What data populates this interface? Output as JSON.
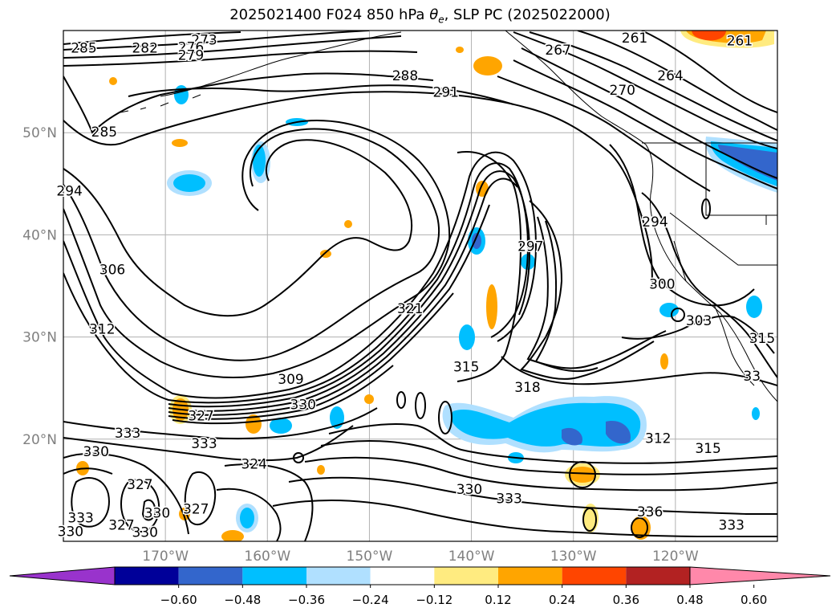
{
  "title": {
    "prefix": "2025021400 F024 850 hPa ",
    "theta": "θ",
    "sub": "e",
    "suffix": ", SLP PC (2025022000)"
  },
  "map": {
    "lon_range": [
      -180,
      -110
    ],
    "lat_range": [
      10,
      60
    ],
    "lon_ticks": [
      {
        "value": -170,
        "label": "170°W"
      },
      {
        "value": -160,
        "label": "160°W"
      },
      {
        "value": -150,
        "label": "150°W"
      },
      {
        "value": -140,
        "label": "140°W"
      },
      {
        "value": -130,
        "label": "130°W"
      },
      {
        "value": -120,
        "label": "120°W"
      }
    ],
    "lat_ticks": [
      {
        "value": 20,
        "label": "20°N"
      },
      {
        "value": 30,
        "label": "30°N"
      },
      {
        "value": 40,
        "label": "40°N"
      },
      {
        "value": 50,
        "label": "50°N"
      }
    ],
    "gridlines": true,
    "contour_labels": [
      {
        "text": "273",
        "lon": -166.2,
        "lat": 59.1
      },
      {
        "text": "285",
        "lon": -178,
        "lat": 58.3
      },
      {
        "text": "282",
        "lon": -172,
        "lat": 58.3
      },
      {
        "text": "276",
        "lon": -167.5,
        "lat": 58.4
      },
      {
        "text": "279",
        "lon": -167.5,
        "lat": 57.6
      },
      {
        "text": "261",
        "lon": -124,
        "lat": 59.3
      },
      {
        "text": "267",
        "lon": -131.5,
        "lat": 58.1
      },
      {
        "text": "264",
        "lon": -120.5,
        "lat": 55.6
      },
      {
        "text": "270",
        "lon": -125.2,
        "lat": 54.2
      },
      {
        "text": "288",
        "lon": -146.5,
        "lat": 55.6
      },
      {
        "text": "291",
        "lon": -142.5,
        "lat": 54.0
      },
      {
        "text": "285",
        "lon": -176,
        "lat": 50.1
      },
      {
        "text": "294",
        "lon": -179.4,
        "lat": 44.3
      },
      {
        "text": "294",
        "lon": -122,
        "lat": 41.3
      },
      {
        "text": "297",
        "lon": -134.2,
        "lat": 38.9
      },
      {
        "text": "306",
        "lon": -175.2,
        "lat": 36.6
      },
      {
        "text": "300",
        "lon": -121.3,
        "lat": 35.2
      },
      {
        "text": "303",
        "lon": -117.7,
        "lat": 31.6
      },
      {
        "text": "312",
        "lon": -176.2,
        "lat": 30.8
      },
      {
        "text": "315",
        "lon": -111.5,
        "lat": 29.9
      },
      {
        "text": "321",
        "lon": -146,
        "lat": 32.8
      },
      {
        "text": "315",
        "lon": -140.5,
        "lat": 27.1
      },
      {
        "text": "318",
        "lon": -134.5,
        "lat": 25.1
      },
      {
        "text": "309",
        "lon": -157.7,
        "lat": 25.9
      },
      {
        "text": "33",
        "lon": -112.5,
        "lat": 26.2
      },
      {
        "text": "330",
        "lon": -156.5,
        "lat": 23.4
      },
      {
        "text": "327",
        "lon": -166.5,
        "lat": 22.3
      },
      {
        "text": "333",
        "lon": -173.7,
        "lat": 20.6
      },
      {
        "text": "333",
        "lon": -166.2,
        "lat": 19.6
      },
      {
        "text": "330",
        "lon": -176.8,
        "lat": 18.8
      },
      {
        "text": "324",
        "lon": -161.3,
        "lat": 17.6
      },
      {
        "text": "327",
        "lon": -172.5,
        "lat": 15.6
      },
      {
        "text": "312",
        "lon": -121.7,
        "lat": 20.1
      },
      {
        "text": "315",
        "lon": -116.8,
        "lat": 19.1
      },
      {
        "text": "330",
        "lon": -140.2,
        "lat": 15.1
      },
      {
        "text": "333",
        "lon": -136.3,
        "lat": 14.2
      },
      {
        "text": "336",
        "lon": -122.5,
        "lat": 12.9
      },
      {
        "text": "333",
        "lon": -114.5,
        "lat": 11.6
      },
      {
        "text": "330",
        "lon": -170.8,
        "lat": 12.8
      },
      {
        "text": "327",
        "lon": -167,
        "lat": 13.2
      },
      {
        "text": "333",
        "lon": -178.3,
        "lat": 12.3
      },
      {
        "text": "327",
        "lon": -174.3,
        "lat": 11.6
      },
      {
        "text": "330",
        "lon": -179.3,
        "lat": 11.0
      },
      {
        "text": "330",
        "lon": -172,
        "lat": 10.9
      },
      {
        "text": "261",
        "lon": -113.7,
        "lat": 59.0
      }
    ]
  },
  "colorbar": {
    "tick_labels": [
      "−0.60",
      "−0.48",
      "−0.36",
      "−0.24",
      "−0.12",
      "0.12",
      "0.24",
      "0.36",
      "0.48",
      "0.60"
    ],
    "colors": [
      "#9933cc",
      "#000099",
      "#3366cc",
      "#00bfff",
      "#b0e0ff",
      "#ffffff",
      "#ffeb80",
      "#ffa500",
      "#ff4500",
      "#b22222",
      "#ff88aa"
    ]
  }
}
